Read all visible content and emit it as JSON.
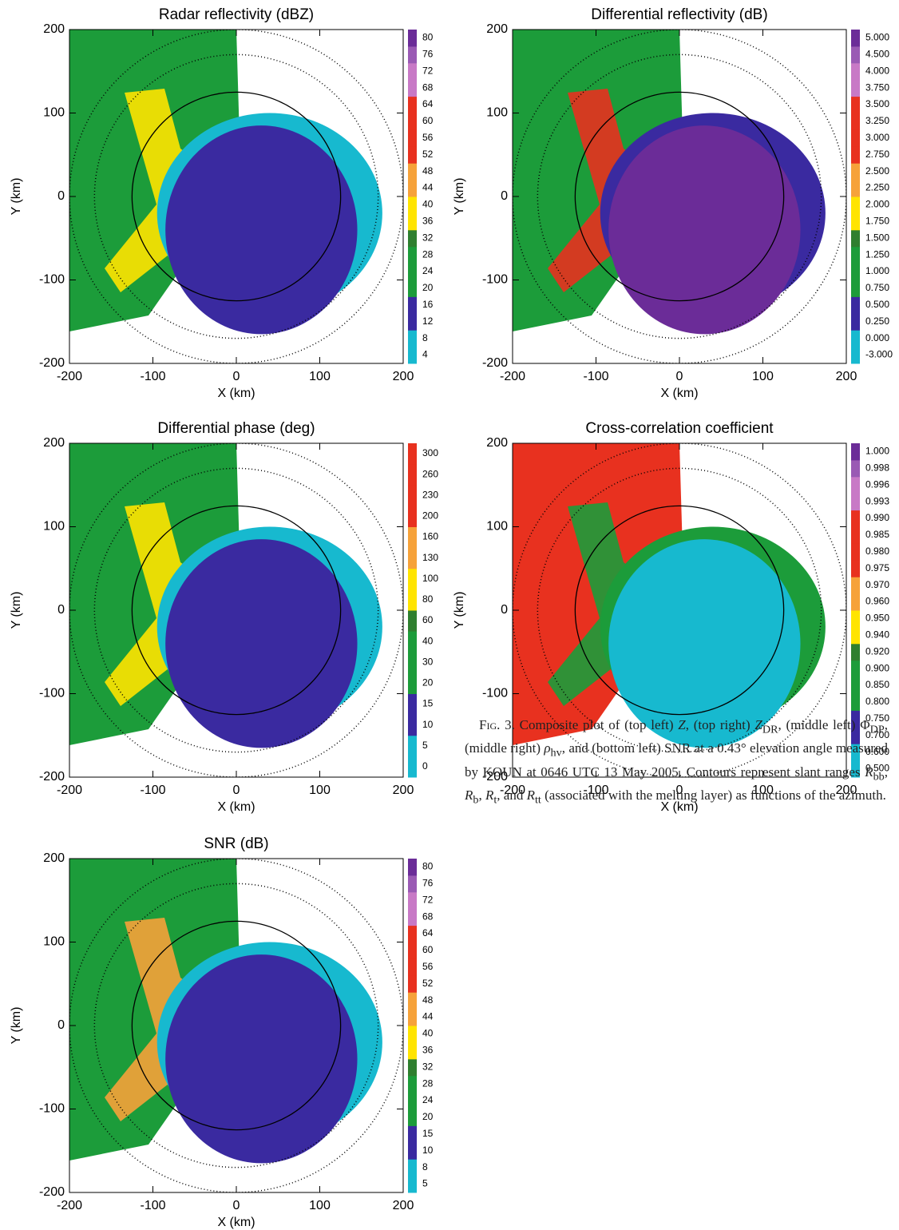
{
  "chart_data": [
    {
      "type": "image",
      "title": "Radar reflectivity (dBZ)",
      "xlabel": "X (km)",
      "ylabel": "Y (km)",
      "xlim": [
        -200,
        200
      ],
      "ylim": [
        -200,
        200
      ],
      "xticks": [
        -200,
        -100,
        0,
        100,
        200
      ],
      "yticks": [
        -200,
        -100,
        0,
        100,
        200
      ],
      "colorbar": {
        "ticks": [
          4,
          8,
          12,
          16,
          20,
          24,
          28,
          32,
          36,
          40,
          44,
          48,
          52,
          56,
          60,
          64,
          68,
          72,
          76,
          80
        ],
        "colors": [
          "#17b9cf",
          "#17b9cf",
          "#3a2aa0",
          "#3a2aa0",
          "#1c9c3a",
          "#1c9c3a",
          "#1c9c3a",
          "#2f7f2f",
          "#ffe400",
          "#ffe400",
          "#f6a23a",
          "#f6a23a",
          "#e8311f",
          "#e8311f",
          "#e8311f",
          "#e8311f",
          "#c879c6",
          "#c879c6",
          "#9a5ab4",
          "#6b2c98"
        ]
      }
    },
    {
      "type": "image",
      "title": "Differential reflectivity (dB)",
      "xlabel": "X (km)",
      "ylabel": "Y (km)",
      "xlim": [
        -200,
        200
      ],
      "ylim": [
        -200,
        200
      ],
      "xticks": [
        -200,
        -100,
        0,
        100,
        200
      ],
      "yticks": [
        -200,
        -100,
        0,
        100,
        200
      ],
      "colorbar": {
        "ticks": [
          {
            "value": -3,
            "label": "-3.000"
          },
          {
            "value": 0,
            "label": "0.000"
          },
          {
            "value": 0.25,
            "label": "0.250"
          },
          {
            "value": 0.5,
            "label": "0.500"
          },
          {
            "value": 0.75,
            "label": "0.750"
          },
          {
            "value": 1,
            "label": "1.000"
          },
          {
            "value": 1.25,
            "label": "1.250"
          },
          {
            "value": 1.5,
            "label": "1.500"
          },
          {
            "value": 1.75,
            "label": "1.750"
          },
          {
            "value": 2,
            "label": "2.000"
          },
          {
            "value": 2.25,
            "label": "2.250"
          },
          {
            "value": 2.5,
            "label": "2.500"
          },
          {
            "value": 2.75,
            "label": "2.750"
          },
          {
            "value": 3,
            "label": "3.000"
          },
          {
            "value": 3.25,
            "label": "3.250"
          },
          {
            "value": 3.5,
            "label": "3.500"
          },
          {
            "value": 3.75,
            "label": "3.750"
          },
          {
            "value": 4,
            "label": "4.000"
          },
          {
            "value": 4.5,
            "label": "4.500"
          },
          {
            "value": 5,
            "label": "5.000"
          }
        ],
        "colors": [
          "#17b9cf",
          "#17b9cf",
          "#3a2aa0",
          "#3a2aa0",
          "#1c9c3a",
          "#1c9c3a",
          "#1c9c3a",
          "#2f7f2f",
          "#ffe400",
          "#ffe400",
          "#f6a23a",
          "#f6a23a",
          "#e8311f",
          "#e8311f",
          "#e8311f",
          "#e8311f",
          "#c879c6",
          "#c879c6",
          "#9a5ab4",
          "#6b2c98"
        ]
      }
    },
    {
      "type": "image",
      "title": "Differential phase (deg)",
      "xlabel": "X (km)",
      "ylabel": "Y (km)",
      "xlim": [
        -200,
        200
      ],
      "ylim": [
        -200,
        200
      ],
      "xticks": [
        -200,
        -100,
        0,
        100,
        200
      ],
      "yticks": [
        -200,
        -100,
        0,
        100,
        200
      ],
      "colorbar": {
        "ticks": [
          0,
          5,
          10,
          15,
          20,
          30,
          40,
          60,
          80,
          100,
          130,
          160,
          200,
          230,
          260,
          300
        ],
        "colors": [
          "#17b9cf",
          "#17b9cf",
          "#3a2aa0",
          "#3a2aa0",
          "#1c9c3a",
          "#1c9c3a",
          "#1c9c3a",
          "#2f7f2f",
          "#ffe400",
          "#ffe400",
          "#f6a23a",
          "#f6a23a",
          "#e8311f",
          "#e8311f",
          "#e8311f",
          "#e8311f"
        ]
      }
    },
    {
      "type": "image",
      "title": "Cross-correlation coefficient",
      "xlabel": "X (km)",
      "ylabel": "Y (km)",
      "xlim": [
        -200,
        200
      ],
      "ylim": [
        -200,
        200
      ],
      "xticks": [
        -200,
        -100,
        0,
        100,
        200
      ],
      "yticks": [
        -200,
        -100,
        0,
        100,
        200
      ],
      "colorbar": {
        "ticks": [
          {
            "value": 0.5,
            "label": "0.500"
          },
          {
            "value": 0.6,
            "label": "0.600"
          },
          {
            "value": 0.7,
            "label": "0.700"
          },
          {
            "value": 0.75,
            "label": "0.750"
          },
          {
            "value": 0.8,
            "label": "0.800"
          },
          {
            "value": 0.85,
            "label": "0.850"
          },
          {
            "value": 0.9,
            "label": "0.900"
          },
          {
            "value": 0.92,
            "label": "0.920"
          },
          {
            "value": 0.94,
            "label": "0.940"
          },
          {
            "value": 0.95,
            "label": "0.950"
          },
          {
            "value": 0.96,
            "label": "0.960"
          },
          {
            "value": 0.97,
            "label": "0.970"
          },
          {
            "value": 0.975,
            "label": "0.975"
          },
          {
            "value": 0.98,
            "label": "0.980"
          },
          {
            "value": 0.985,
            "label": "0.985"
          },
          {
            "value": 0.99,
            "label": "0.990"
          },
          {
            "value": 0.993,
            "label": "0.993"
          },
          {
            "value": 0.996,
            "label": "0.996"
          },
          {
            "value": 0.998,
            "label": "0.998"
          },
          {
            "value": 1,
            "label": "1.000"
          }
        ],
        "colors": [
          "#17b9cf",
          "#17b9cf",
          "#3a2aa0",
          "#3a2aa0",
          "#1c9c3a",
          "#1c9c3a",
          "#1c9c3a",
          "#2f7f2f",
          "#ffe400",
          "#ffe400",
          "#f6a23a",
          "#f6a23a",
          "#e8311f",
          "#e8311f",
          "#e8311f",
          "#e8311f",
          "#c879c6",
          "#c879c6",
          "#9a5ab4",
          "#6b2c98"
        ]
      }
    },
    {
      "type": "image",
      "title": "SNR (dB)",
      "xlabel": "X (km)",
      "ylabel": "Y (km)",
      "xlim": [
        -200,
        200
      ],
      "ylim": [
        -200,
        200
      ],
      "xticks": [
        -200,
        -100,
        0,
        100,
        200
      ],
      "yticks": [
        -200,
        -100,
        0,
        100,
        200
      ],
      "colorbar": {
        "ticks": [
          5,
          8,
          10,
          15,
          20,
          24,
          28,
          32,
          36,
          40,
          44,
          48,
          52,
          56,
          60,
          64,
          68,
          72,
          76,
          80
        ],
        "colors": [
          "#17b9cf",
          "#17b9cf",
          "#3a2aa0",
          "#3a2aa0",
          "#1c9c3a",
          "#1c9c3a",
          "#1c9c3a",
          "#2f7f2f",
          "#ffe400",
          "#ffe400",
          "#f6a23a",
          "#f6a23a",
          "#e8311f",
          "#e8311f",
          "#e8311f",
          "#e8311f",
          "#c879c6",
          "#c879c6",
          "#9a5ab4",
          "#6b2c98"
        ]
      }
    }
  ],
  "caption": {
    "parts": [
      "Fig. 3.",
      " Composite plot of (top left) ",
      "Z",
      ", (top right) ",
      "Z",
      "DR",
      ", (middle left) ",
      "Φ",
      "DP",
      ", (middle right) ",
      "ρ",
      "hv",
      ", and (bottom left) SNR at a 0.43° elevation angle measured by KOUN at 0646 UTC 13 May 2005. Contours represent slant ranges ",
      "R",
      "bb",
      ", ",
      "R",
      "b",
      ", ",
      "R",
      "t",
      ", and ",
      "R",
      "tt",
      " (associated with the melting layer) as functions of the azimuth."
    ]
  }
}
